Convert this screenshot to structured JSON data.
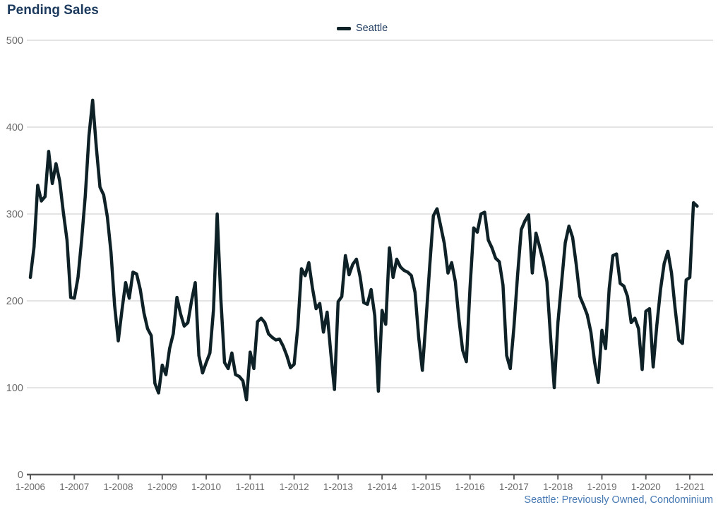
{
  "title": "Pending Sales",
  "legend": {
    "label": "Seattle"
  },
  "footnote": "Seattle: Previously Owned, Condominium",
  "colors": {
    "line": "#0e2126",
    "title_text": "#1c3a5e",
    "legend_text": "#1c3a5e",
    "footnote_text": "#4779b3",
    "gridline": "#c9c9c9",
    "axis_line": "#58595a",
    "axis_label": "#6a6a6a",
    "background": "#ffffff"
  },
  "chart_data": {
    "type": "line",
    "title": "Pending Sales",
    "xlabel": "",
    "ylabel": "",
    "ylim": [
      0,
      500
    ],
    "y_ticks": [
      0,
      100,
      200,
      300,
      400,
      500
    ],
    "y_tick_labels": [
      "0",
      "100",
      "200",
      "300",
      "400",
      "500"
    ],
    "x_tick_labels": [
      "1-2006",
      "1-2007",
      "1-2008",
      "1-2009",
      "1-2010",
      "1-2011",
      "1-2012",
      "1-2013",
      "1-2014",
      "1-2015",
      "1-2016",
      "1-2017",
      "1-2018",
      "1-2019",
      "1-2020",
      "1-2021"
    ],
    "grid": "horizontal",
    "legend_position": "top-center",
    "frequency": "monthly",
    "start_month": "1-2006",
    "end_month": "3-2021",
    "series": [
      {
        "name": "Seattle",
        "values": [
          227,
          262,
          333,
          315,
          320,
          372,
          335,
          358,
          338,
          302,
          270,
          204,
          203,
          227,
          270,
          321,
          390,
          431,
          377,
          331,
          322,
          297,
          256,
          195,
          154,
          189,
          221,
          203,
          233,
          231,
          213,
          186,
          168,
          160,
          105,
          94,
          126,
          115,
          145,
          162,
          204,
          185,
          171,
          175,
          200,
          221,
          137,
          117,
          129,
          140,
          190,
          300,
          202,
          129,
          122,
          140,
          115,
          113,
          108,
          86,
          141,
          122,
          176,
          180,
          175,
          162,
          158,
          155,
          156,
          148,
          137,
          123,
          127,
          170,
          237,
          229,
          244,
          215,
          191,
          197,
          164,
          187,
          140,
          98,
          199,
          205,
          252,
          230,
          242,
          248,
          228,
          198,
          196,
          213,
          183,
          96,
          189,
          173,
          261,
          227,
          248,
          239,
          235,
          233,
          229,
          210,
          158,
          120,
          178,
          240,
          298,
          306,
          286,
          266,
          232,
          244,
          222,
          178,
          143,
          130,
          215,
          284,
          279,
          300,
          302,
          270,
          261,
          249,
          245,
          218,
          137,
          122,
          170,
          230,
          282,
          292,
          299,
          232,
          278,
          262,
          245,
          222,
          158,
          100,
          175,
          221,
          267,
          286,
          273,
          242,
          205,
          195,
          184,
          164,
          130,
          106,
          166,
          145,
          214,
          252,
          254,
          220,
          217,
          205,
          175,
          180,
          168,
          121,
          188,
          191,
          124,
          172,
          213,
          243,
          257,
          232,
          191,
          155,
          151,
          224,
          227,
          313,
          309
        ]
      }
    ]
  }
}
